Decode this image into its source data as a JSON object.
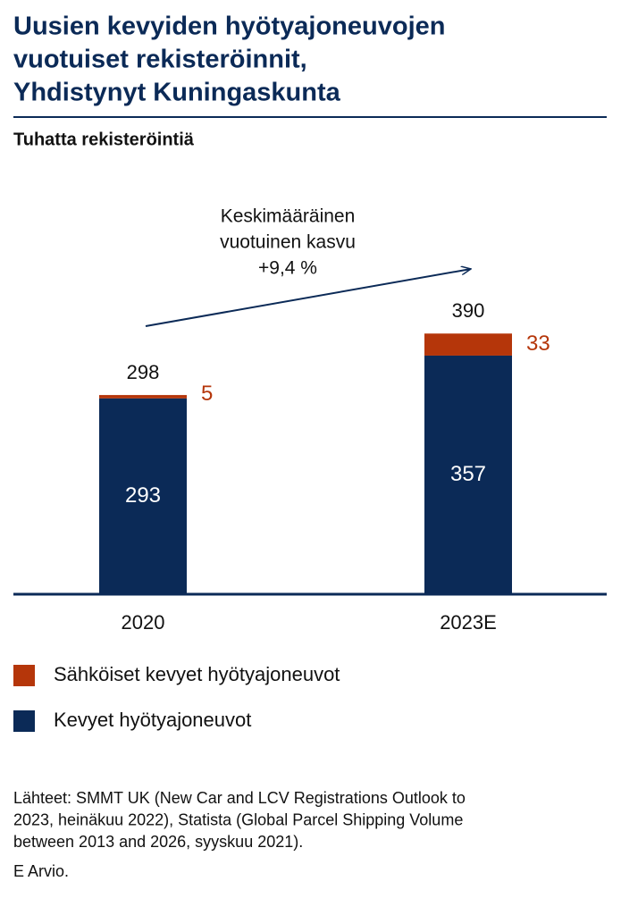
{
  "chart_data": {
    "type": "stacked_bar",
    "title": [
      "Uusien kevyiden hyötyajoneuvojen",
      "vuotuiset rekisteröinnit,",
      "Yhdistynyt Kuningaskunta"
    ],
    "subtitle": "Tuhatta rekisteröintiä",
    "annotation": [
      "Keskimääräinen",
      "vuotuinen kasvu",
      "+9,4 %"
    ],
    "categories": [
      "2020",
      "2023E"
    ],
    "series": [
      {
        "name": "Kevyet hyötyajoneuvot",
        "color": "#0b2a57",
        "values": [
          293,
          357
        ]
      },
      {
        "name": "Sähköiset kevyet hyötyajoneuvot",
        "color": "#b5360a",
        "values": [
          5,
          33
        ]
      }
    ],
    "totals": [
      298,
      390
    ],
    "source": [
      "Lähteet: SMMT UK (New Car and LCV Registrations Outlook to",
      "2023, heinäkuu 2022), Statista (Global Parcel Shipping Volume",
      "between 2013 and 2026, syyskuu 2021)."
    ],
    "note": "E Arvio."
  }
}
